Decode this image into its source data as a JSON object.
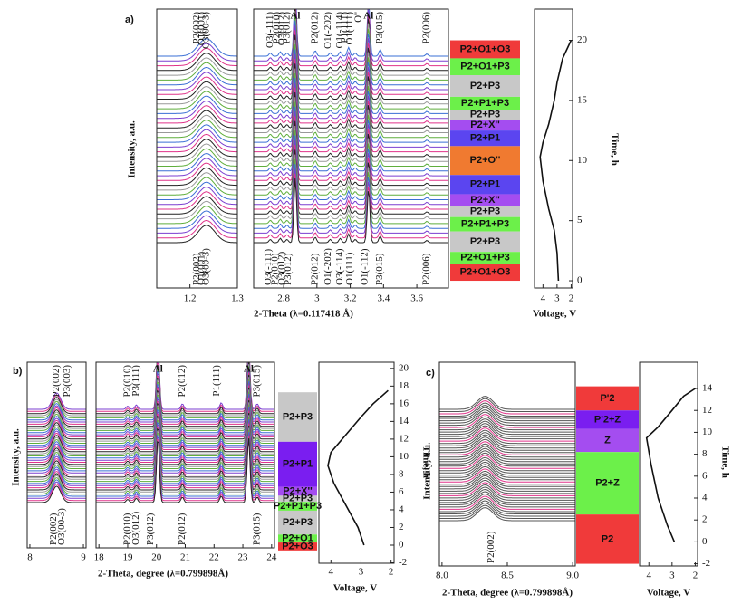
{
  "chart_data": [
    {
      "type": "waterfall",
      "panel": "a)",
      "xlabel": "2-Theta (λ=0.117418 Å)",
      "ylabel": "Intensity, a.u.",
      "trace_count": 40,
      "trace_colors": [
        "#222222",
        "#e0338a",
        "#7b3fd0",
        "#3a6fd5",
        "#5fae3c",
        "#999999"
      ],
      "subplots": [
        {
          "xlim": [
            1.13,
            1.3
          ],
          "xticks": [
            1.2,
            1.3
          ],
          "peak_width": 0.018,
          "peaks": [
            {
              "x": 1.235,
              "height": 1.6
            }
          ],
          "labels_top": [
            {
              "text": "P2(002)",
              "x": 1.215
            },
            {
              "text": "O1(001)",
              "x": 1.225
            },
            {
              "text": "O3(00-3)",
              "x": 1.235
            }
          ],
          "labels_bottom": [
            {
              "text": "P2(002)",
              "x": 1.215
            },
            {
              "text": "O1(001)",
              "x": 1.225
            },
            {
              "text": "O3(00-3)",
              "x": 1.235
            }
          ]
        },
        {
          "xlim": [
            2.62,
            3.79
          ],
          "xticks": [
            2.8,
            3.0,
            3.2,
            3.4,
            3.6
          ],
          "peak_width": 0.008,
          "peaks": [
            {
              "x": 2.72,
              "height": 0.3
            },
            {
              "x": 2.78,
              "height": 0.4
            },
            {
              "x": 2.82,
              "height": 0.3
            },
            {
              "x": 2.87,
              "height": 6
            },
            {
              "x": 2.99,
              "height": 0.5
            },
            {
              "x": 3.08,
              "height": 0.3
            },
            {
              "x": 3.14,
              "height": 0.4
            },
            {
              "x": 3.19,
              "height": 0.8
            },
            {
              "x": 3.23,
              "height": 0.3
            },
            {
              "x": 3.31,
              "height": 5
            },
            {
              "x": 3.38,
              "height": 0.6
            },
            {
              "x": 3.66,
              "height": 0.2
            }
          ],
          "labels_top": [
            {
              "text": "O3(-111)",
              "x": 2.72
            },
            {
              "text": "P2(010)",
              "x": 2.76
            },
            {
              "text": "O3(012)",
              "x": 2.79
            },
            {
              "text": "P3(012)",
              "x": 2.82
            },
            {
              "text": "Al",
              "x": 2.87,
              "horizontal": true
            },
            {
              "text": "P2(012)",
              "x": 2.99
            },
            {
              "text": "O1(-202)",
              "x": 3.07
            },
            {
              "text": "O1(-114)",
              "x": 3.14
            },
            {
              "text": "P1(111)",
              "x": 3.17
            },
            {
              "text": "O1(111)",
              "x": 3.2
            },
            {
              "text": "O''",
              "x": 3.25
            },
            {
              "text": "Al",
              "x": 3.31,
              "horizontal": true
            },
            {
              "text": "P3(015)",
              "x": 3.38
            },
            {
              "text": "P2(006)",
              "x": 3.66
            }
          ],
          "labels_bottom": [
            {
              "text": "O3(-111)",
              "x": 2.71
            },
            {
              "text": "P2(010)",
              "x": 2.75
            },
            {
              "text": "O3(012)",
              "x": 2.79
            },
            {
              "text": "P3(012)",
              "x": 2.83
            },
            {
              "text": "P2(012)",
              "x": 2.99
            },
            {
              "text": "O1(-202)",
              "x": 3.07
            },
            {
              "text": "O3(-114)",
              "x": 3.14
            },
            {
              "text": "O1(111)",
              "x": 3.2
            },
            {
              "text": "O1(-112)",
              "x": 3.29
            },
            {
              "text": "P3(015)",
              "x": 3.38
            },
            {
              "text": "P2(006)",
              "x": 3.66
            }
          ]
        }
      ]
    },
    {
      "type": "phase-bar",
      "ylim": [
        -0.6,
        22.6
      ],
      "phases": [
        {
          "name": "P2+O1+O3",
          "color": "#f03a3a",
          "start": 18.5,
          "end": 20.0
        },
        {
          "name": "P2+O1+P3",
          "color": "#6cf04a",
          "start": 17.1,
          "end": 18.5
        },
        {
          "name": "P2+P3",
          "color": "#c8c8c8",
          "start": 15.3,
          "end": 17.1
        },
        {
          "name": "P2+P1+P3",
          "color": "#6cf04a",
          "start": 14.2,
          "end": 15.3
        },
        {
          "name": "P2+P3",
          "color": "#c8c8c8",
          "start": 13.4,
          "end": 14.2
        },
        {
          "name": "P2+X''",
          "color": "#a44df0",
          "start": 12.5,
          "end": 13.4
        },
        {
          "name": "P2+P1",
          "color": "#5b45f0",
          "start": 11.2,
          "end": 12.5
        },
        {
          "name": "P2+O''",
          "color": "#f07a30",
          "start": 8.8,
          "end": 11.2
        },
        {
          "name": "P2+P1",
          "color": "#5b45f0",
          "start": 7.2,
          "end": 8.8
        },
        {
          "name": "P2+X''",
          "color": "#a44df0",
          "start": 6.2,
          "end": 7.2
        },
        {
          "name": "P2+P3",
          "color": "#c8c8c8",
          "start": 5.3,
          "end": 6.2
        },
        {
          "name": "P2+P1+P3",
          "color": "#6cf04a",
          "start": 4.1,
          "end": 5.3
        },
        {
          "name": "P2+P3",
          "color": "#c8c8c8",
          "start": 2.4,
          "end": 4.1
        },
        {
          "name": "P2+O1+P3",
          "color": "#6cf04a",
          "start": 1.4,
          "end": 2.4
        },
        {
          "name": "P2+O1+O3",
          "color": "#f03a3a",
          "start": 0,
          "end": 1.4
        }
      ]
    },
    {
      "type": "line",
      "xlabel": "Voltage, V",
      "ylabel": "Time, h",
      "xlim": [
        4.6,
        1.9
      ],
      "xticks": [
        4,
        3,
        2
      ],
      "ylim": [
        -0.6,
        22.6
      ],
      "yticks": [
        0,
        5,
        10,
        15,
        20
      ],
      "color": "#111111",
      "x": [
        2.9,
        3.0,
        3.2,
        3.6,
        4.0,
        4.2,
        4.0,
        3.6,
        3.2,
        3.0,
        2.6,
        2.0
      ],
      "values": [
        0,
        2.3,
        4.2,
        6,
        8.3,
        10.3,
        11.5,
        13,
        15,
        16.5,
        18.5,
        20
      ]
    },
    {
      "type": "waterfall",
      "panel": "b)",
      "xlabel": "2-Theta, degree (λ=0.799898Å)",
      "ylabel": "Intensity, a.u.",
      "trace_count": 45,
      "trace_colors": [
        "#222222",
        "#e0338a",
        "#7b3fd0",
        "#3a6fd5",
        "#5fae3c",
        "#999999"
      ],
      "subplots": [
        {
          "xlim": [
            7.95,
            9.05
          ],
          "xticks": [
            8,
            9
          ],
          "peak_width": 0.08,
          "peaks": [
            {
              "x": 8.5,
              "height": 1.5
            }
          ],
          "labels_top": [
            {
              "text": "P2(002)",
              "x": 8.5
            },
            {
              "text": "P3(003)",
              "x": 8.7
            }
          ],
          "labels_bottom": [
            {
              "text": "P2(002)",
              "x": 8.45
            },
            {
              "text": "O3(00-3)",
              "x": 8.6
            }
          ]
        },
        {
          "xlim": [
            17.9,
            24.1
          ],
          "xticks": [
            18,
            19,
            20,
            21,
            22,
            23,
            24
          ],
          "peak_width": 0.05,
          "peaks": [
            {
              "x": 19.0,
              "height": 0.3
            },
            {
              "x": 19.3,
              "height": 0.4
            },
            {
              "x": 20.05,
              "height": 6
            },
            {
              "x": 20.9,
              "height": 0.5
            },
            {
              "x": 22.25,
              "height": 0.6
            },
            {
              "x": 23.2,
              "height": 6
            },
            {
              "x": 23.5,
              "height": 0.5
            }
          ],
          "labels_top": [
            {
              "text": "P2(010)",
              "x": 19.0
            },
            {
              "text": "P3(111)",
              "x": 19.3
            },
            {
              "text": "Al",
              "x": 20.05,
              "horizontal": true
            },
            {
              "text": "P2(012)",
              "x": 20.9
            },
            {
              "text": "P1(111)",
              "x": 22.1
            },
            {
              "text": "Al",
              "x": 23.2,
              "horizontal": true
            },
            {
              "text": "P3(015)",
              "x": 23.5
            }
          ],
          "labels_bottom": [
            {
              "text": "P2(010)",
              "x": 19.0
            },
            {
              "text": "O3(012)",
              "x": 19.3
            },
            {
              "text": "P3(012)",
              "x": 19.8
            },
            {
              "text": "P2(012)",
              "x": 20.9
            },
            {
              "text": "P3(015)",
              "x": 23.5
            }
          ]
        }
      ]
    },
    {
      "type": "phase-bar",
      "ylim": [
        -2.05,
        20.7
      ],
      "phases": [
        {
          "name": "P2+P3",
          "color": "#c8c8c8",
          "start": 11.7,
          "end": 17.3
        },
        {
          "name": "P2+P1",
          "color": "#7a1ef0",
          "start": 6.6,
          "end": 11.7
        },
        {
          "name": "P2+X''",
          "color": "#a44df0",
          "start": 5.6,
          "end": 6.6
        },
        {
          "name": "P2+P3",
          "color": "#c8c8c8",
          "start": 4.9,
          "end": 5.6
        },
        {
          "name": "P2+P1+P3",
          "color": "#6cf04a",
          "start": 3.9,
          "end": 4.9
        },
        {
          "name": "P2+P3",
          "color": "#c8c8c8",
          "start": 1.2,
          "end": 3.9
        },
        {
          "name": "P2+O1",
          "color": "#6cf04a",
          "start": 0.3,
          "end": 1.2
        },
        {
          "name": "P2+O3",
          "color": "#f03a3a",
          "start": -0.6,
          "end": 0.3
        }
      ]
    },
    {
      "type": "line",
      "xlabel": "Voltage, V",
      "ylabel": "Time, h",
      "xlim": [
        4.4,
        1.9
      ],
      "xticks": [
        4,
        3,
        2
      ],
      "ylim": [
        -2.05,
        20.7
      ],
      "yticks": [
        -2,
        0,
        2,
        4,
        6,
        8,
        10,
        12,
        14,
        16,
        18,
        20
      ],
      "color": "#111111",
      "x": [
        2.9,
        3.1,
        3.5,
        3.9,
        4.1,
        4.0,
        3.5,
        3.0,
        2.6,
        2.1
      ],
      "values": [
        0,
        2,
        4.5,
        7,
        9,
        10.5,
        12.5,
        14.5,
        16,
        17.5
      ]
    },
    {
      "type": "waterfall",
      "panel": "c)",
      "xlabel": "2-Theta, degree (λ=0.799898Å)",
      "ylabel": "Intensity, a.u.",
      "trace_count": 50,
      "trace_colors": [
        "#555555",
        "#555555",
        "#555555",
        "#555555",
        "#555555",
        "#e0338a"
      ],
      "subplots": [
        {
          "xlim": [
            7.98,
            9.02
          ],
          "xticks": [
            {
              "value": 8,
              "label": "8.0"
            },
            8.5,
            {
              "value": 9,
              "label": "9.0"
            }
          ],
          "peak_width": 0.06,
          "peaks": [
            {
              "x": 8.33,
              "height": 1.2
            }
          ],
          "labels_top": [],
          "labels_bottom": [
            {
              "text": "P2(002)",
              "x": 8.38
            }
          ]
        }
      ]
    },
    {
      "type": "phase-bar",
      "ylim": [
        -2.2,
        16.4
      ],
      "phases": [
        {
          "name": "P'2",
          "color": "#f03a3a",
          "start": 12,
          "end": 14.2
        },
        {
          "name": "P'2+Z",
          "color": "#7a1ef0",
          "start": 10.3,
          "end": 12
        },
        {
          "name": "Z",
          "color": "#a44df0",
          "start": 8.2,
          "end": 10.3
        },
        {
          "name": "P2+Z",
          "color": "#6cf04a",
          "start": 2.5,
          "end": 8.2
        },
        {
          "name": "P2",
          "color": "#f03a3a",
          "start": -2,
          "end": 2.5
        }
      ]
    },
    {
      "type": "line",
      "xlabel": "Voltage, V",
      "ylabel": "Time, h",
      "xlim": [
        4.4,
        1.9
      ],
      "xticks": [
        4,
        3,
        2
      ],
      "ylim": [
        -2.2,
        16.4
      ],
      "yticks": [
        -2,
        0,
        2,
        4,
        6,
        8,
        10,
        12,
        14
      ],
      "color": "#111111",
      "x": [
        2.9,
        3.2,
        3.6,
        3.9,
        4.1,
        3.6,
        3.0,
        2.5,
        2.0
      ],
      "values": [
        0,
        1.5,
        4,
        7,
        9.5,
        10.5,
        12,
        13.3,
        14
      ]
    }
  ]
}
